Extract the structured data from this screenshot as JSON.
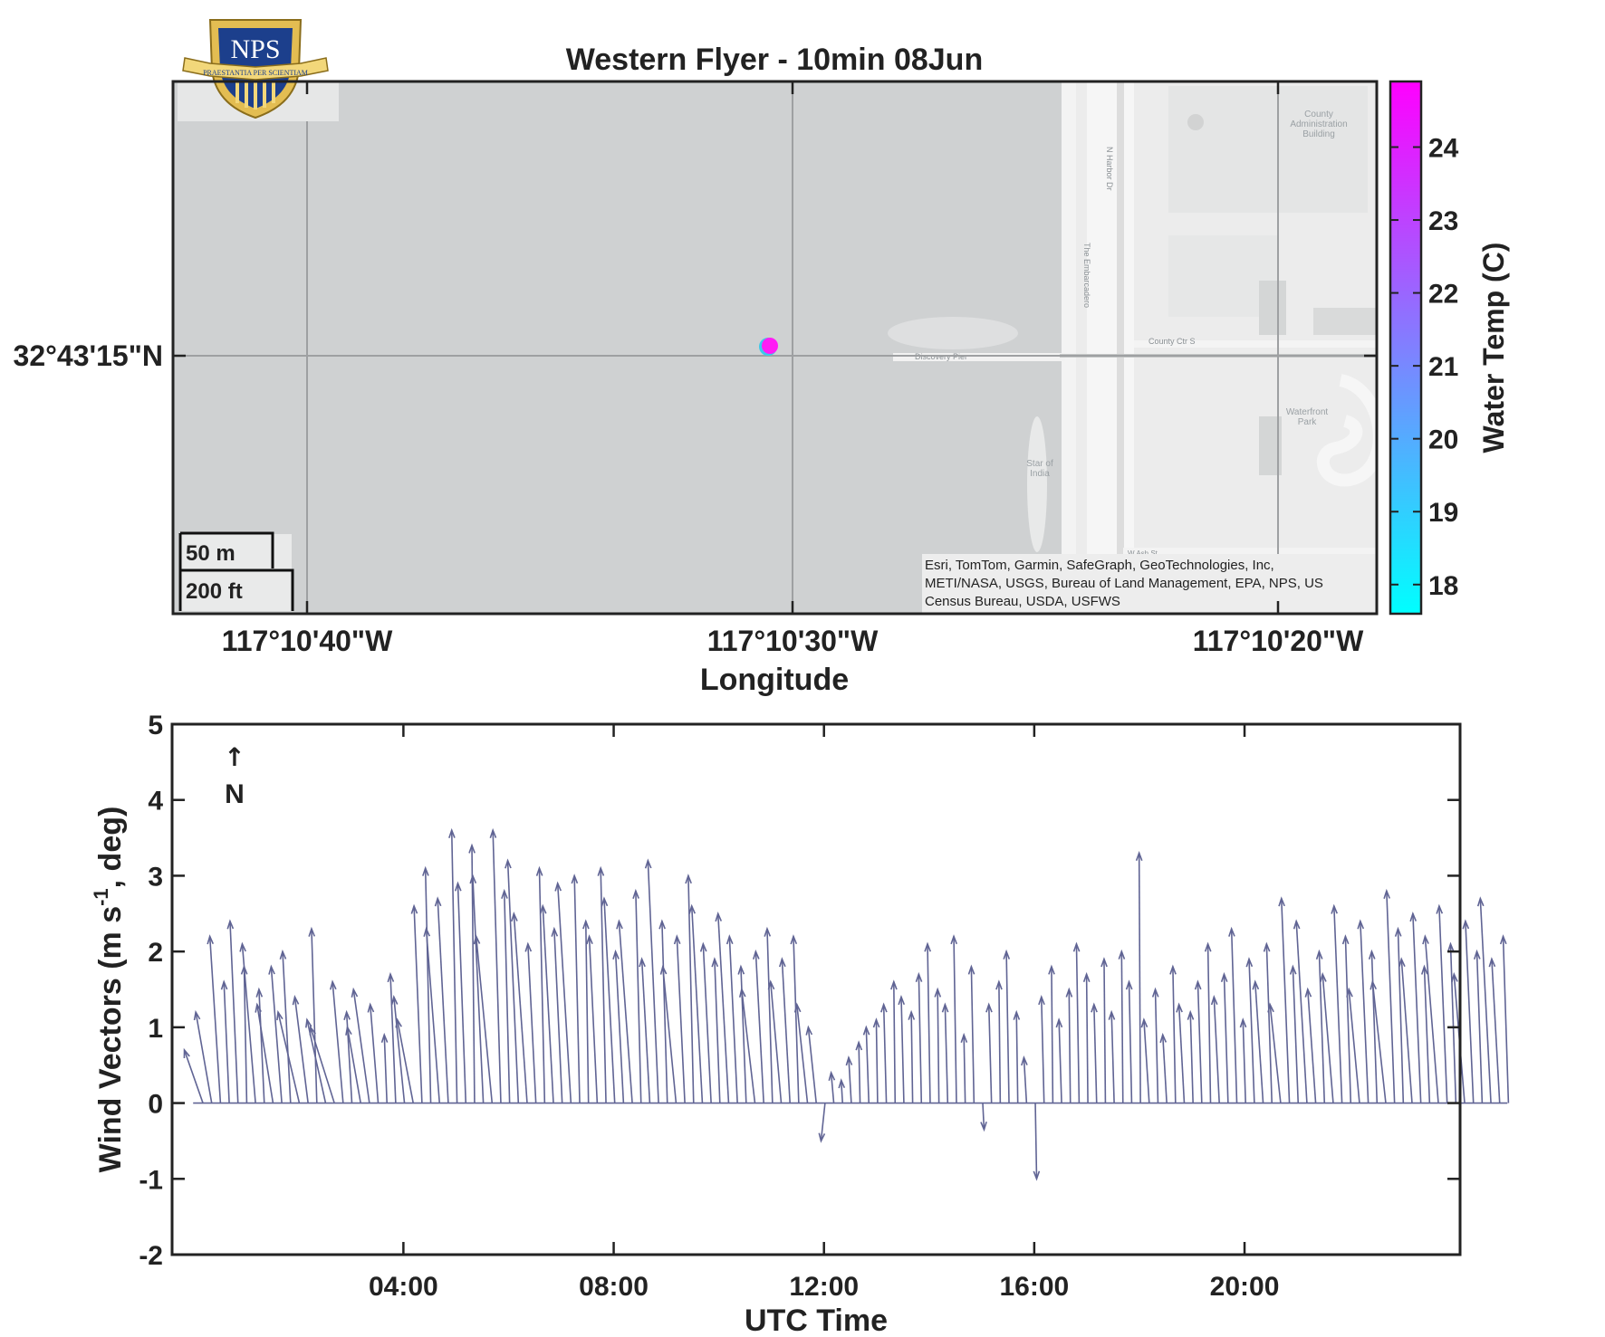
{
  "logo": {
    "text": "NPS",
    "motto": "PRAESTANTIA PER SCIENTIAM"
  },
  "map_panel": {
    "title": "Western Flyer - 10min 08Jun",
    "xlabel": "Longitude",
    "x_ticks": [
      "117°10'40\"W",
      "117°10'30\"W",
      "117°10'20\"W"
    ],
    "y_ticks": [
      "32°43'15\"N"
    ],
    "scale_bar": {
      "metric": "50 m",
      "imperial": "200 ft"
    },
    "attribution": [
      "Esri, TomTom, Garmin, SafeGraph, GeoTechnologies, Inc,",
      "METI/NASA, USGS, Bureau of Land Management, EPA, NPS, US",
      "Census Bureau, USDA, USFWS"
    ],
    "basemap_labels": {
      "county_admin": [
        "County",
        "Administration",
        "Building"
      ],
      "n_harbor": "N Harbor Dr",
      "embarcadero": "The Embarcadero",
      "county_ctr": "County Ctr S",
      "discovery_pier": "Discovery Pier",
      "waterfront_park": [
        "Waterfront",
        "Park"
      ],
      "star_of_india": [
        "Star of",
        "India"
      ],
      "w_ash": "W Ash St"
    },
    "colorbar": {
      "label": "Water Temp (C)",
      "ticks": [
        "18",
        "19",
        "20",
        "21",
        "22",
        "23",
        "24"
      ],
      "range": [
        17.6,
        24.9
      ],
      "colormap": [
        "#00ffff",
        "#ff00ff"
      ]
    },
    "point": {
      "water_temp_c": 24.5,
      "color": "#ff1cf5",
      "outline": "#3cc8ea"
    }
  },
  "chart_data": {
    "type": "quiver",
    "xlabel": "UTC Time",
    "ylabel": "Wind Vectors (m s-1, deg)",
    "ylim": [
      -2,
      5
    ],
    "xlim_hours": [
      -0.4,
      24.1
    ],
    "x_tick_labels": [
      "04:00",
      "08:00",
      "12:00",
      "16:00",
      "20:00"
    ],
    "x_tick_hours": [
      4,
      8,
      12,
      16,
      20
    ],
    "y_ticks": [
      "-2",
      "-1",
      "0",
      "1",
      "2",
      "3",
      "4",
      "5"
    ],
    "north_label": "N",
    "color": "#606494",
    "grid": false,
    "interval_minutes": 10,
    "start_hour": 0.0,
    "tips": [
      [
        -0.7,
        0.7
      ],
      [
        -0.6,
        1.2
      ],
      [
        -0.4,
        2.2
      ],
      [
        -0.2,
        1.6
      ],
      [
        -0.3,
        2.4
      ],
      [
        -0.1,
        1.8
      ],
      [
        -0.5,
        2.1
      ],
      [
        -0.2,
        1.5
      ],
      [
        -0.6,
        1.3
      ],
      [
        -0.4,
        1.8
      ],
      [
        -0.3,
        2.0
      ],
      [
        -0.8,
        1.2
      ],
      [
        -0.5,
        1.4
      ],
      [
        -0.2,
        2.3
      ],
      [
        -0.7,
        1.1
      ],
      [
        -0.9,
        1.0
      ],
      [
        -0.4,
        1.6
      ],
      [
        -0.2,
        1.2
      ],
      [
        -0.5,
        1.0
      ],
      [
        -0.6,
        1.5
      ],
      [
        -0.3,
        1.3
      ],
      [
        -0.1,
        0.9
      ],
      [
        -0.2,
        1.7
      ],
      [
        -0.4,
        1.4
      ],
      [
        -0.6,
        1.1
      ],
      [
        -0.3,
        2.6
      ],
      [
        -0.2,
        3.1
      ],
      [
        -0.5,
        2.3
      ],
      [
        -0.4,
        2.7
      ],
      [
        -0.2,
        3.6
      ],
      [
        -0.3,
        2.9
      ],
      [
        -0.1,
        3.4
      ],
      [
        -0.4,
        3.0
      ],
      [
        -0.6,
        2.2
      ],
      [
        -0.3,
        3.6
      ],
      [
        -0.2,
        2.8
      ],
      [
        -0.4,
        3.2
      ],
      [
        -0.5,
        2.5
      ],
      [
        -0.3,
        2.1
      ],
      [
        -0.2,
        3.1
      ],
      [
        -0.4,
        2.6
      ],
      [
        -0.3,
        2.3
      ],
      [
        -0.5,
        2.9
      ],
      [
        -0.2,
        3.0
      ],
      [
        -0.1,
        2.4
      ],
      [
        -0.3,
        2.2
      ],
      [
        -0.2,
        3.1
      ],
      [
        -0.4,
        2.7
      ],
      [
        -0.3,
        2.0
      ],
      [
        -0.5,
        2.4
      ],
      [
        -0.2,
        2.8
      ],
      [
        -0.3,
        1.9
      ],
      [
        -0.4,
        3.2
      ],
      [
        -0.2,
        2.4
      ],
      [
        -0.5,
        1.8
      ],
      [
        -0.3,
        2.2
      ],
      [
        -0.2,
        3.0
      ],
      [
        -0.4,
        2.6
      ],
      [
        -0.3,
        2.1
      ],
      [
        -0.2,
        1.9
      ],
      [
        -0.4,
        2.5
      ],
      [
        -0.3,
        2.2
      ],
      [
        -0.2,
        1.8
      ],
      [
        -0.5,
        1.5
      ],
      [
        -0.3,
        2.0
      ],
      [
        -0.2,
        2.3
      ],
      [
        -0.4,
        1.6
      ],
      [
        -0.3,
        1.9
      ],
      [
        -0.2,
        2.2
      ],
      [
        -0.4,
        1.3
      ],
      [
        -0.3,
        1.0
      ],
      [
        -0.15,
        -0.5
      ],
      [
        -0.1,
        0.4
      ],
      [
        -0.05,
        0.3
      ],
      [
        -0.1,
        0.6
      ],
      [
        -0.05,
        0.8
      ],
      [
        -0.1,
        1.0
      ],
      [
        -0.05,
        1.1
      ],
      [
        -0.1,
        1.3
      ],
      [
        -0.05,
        1.6
      ],
      [
        -0.1,
        1.4
      ],
      [
        -0.05,
        1.2
      ],
      [
        -0.1,
        1.7
      ],
      [
        -0.1,
        2.1
      ],
      [
        -0.05,
        1.5
      ],
      [
        -0.1,
        1.3
      ],
      [
        -0.1,
        2.2
      ],
      [
        -0.05,
        0.9
      ],
      [
        -0.1,
        1.8
      ],
      [
        0.05,
        -0.35
      ],
      [
        -0.1,
        1.3
      ],
      [
        -0.05,
        1.6
      ],
      [
        -0.1,
        2.0
      ],
      [
        -0.05,
        1.2
      ],
      [
        -0.1,
        0.6
      ],
      [
        0.05,
        -1.0
      ],
      [
        -0.1,
        1.4
      ],
      [
        -0.05,
        1.8
      ],
      [
        -0.1,
        1.1
      ],
      [
        -0.05,
        1.5
      ],
      [
        -0.1,
        2.1
      ],
      [
        -0.05,
        1.7
      ],
      [
        -0.1,
        1.3
      ],
      [
        -0.05,
        1.9
      ],
      [
        -0.1,
        1.2
      ],
      [
        -0.05,
        2.0
      ],
      [
        -0.1,
        1.6
      ],
      [
        -0.05,
        3.3
      ],
      [
        -0.2,
        1.1
      ],
      [
        -0.1,
        1.5
      ],
      [
        -0.15,
        0.9
      ],
      [
        -0.1,
        1.8
      ],
      [
        -0.2,
        1.3
      ],
      [
        -0.1,
        1.2
      ],
      [
        -0.15,
        1.6
      ],
      [
        -0.1,
        2.1
      ],
      [
        -0.2,
        1.4
      ],
      [
        -0.15,
        1.7
      ],
      [
        -0.2,
        2.3
      ],
      [
        -0.1,
        1.1
      ],
      [
        -0.2,
        1.9
      ],
      [
        -0.3,
        1.6
      ],
      [
        -0.2,
        2.1
      ],
      [
        -0.4,
        1.3
      ],
      [
        -0.3,
        2.7
      ],
      [
        -0.2,
        1.8
      ],
      [
        -0.4,
        2.4
      ],
      [
        -0.3,
        1.5
      ],
      [
        -0.2,
        2.0
      ],
      [
        -0.4,
        1.7
      ],
      [
        -0.3,
        2.6
      ],
      [
        -0.2,
        2.2
      ],
      [
        -0.4,
        1.5
      ],
      [
        -0.3,
        2.4
      ],
      [
        -0.2,
        2.0
      ],
      [
        -0.5,
        1.6
      ],
      [
        -0.3,
        2.8
      ],
      [
        -0.2,
        2.3
      ],
      [
        -0.4,
        1.9
      ],
      [
        -0.3,
        2.5
      ],
      [
        -0.2,
        1.8
      ],
      [
        -0.5,
        2.2
      ],
      [
        -0.3,
        2.6
      ],
      [
        -0.2,
        2.1
      ],
      [
        -0.4,
        1.7
      ],
      [
        -0.3,
        2.4
      ],
      [
        -0.2,
        2.0
      ],
      [
        -0.4,
        2.7
      ],
      [
        -0.3,
        1.9
      ],
      [
        -0.2,
        2.2
      ]
    ]
  }
}
